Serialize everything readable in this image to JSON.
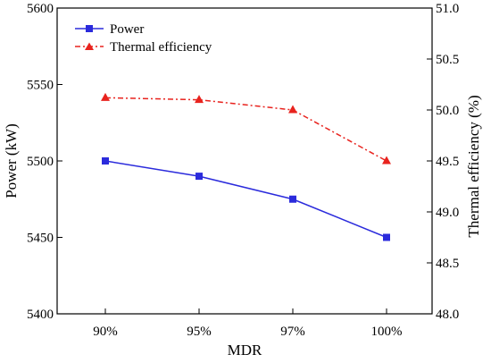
{
  "chart_data": {
    "type": "line",
    "categories": [
      "90%",
      "95%",
      "97%",
      "100%"
    ],
    "xlabel": "MDR",
    "y_left": {
      "label": "Power (kW)",
      "ylim": [
        5400,
        5600
      ],
      "ticks": [
        5400,
        5450,
        5500,
        5550,
        5600
      ]
    },
    "y_right": {
      "label": "Thermal efficiency (%)",
      "ylim": [
        48.0,
        51.0
      ],
      "ticks": [
        "48.0",
        "48.5",
        "49.0",
        "49.5",
        "50.0",
        "50.5",
        "51.0"
      ]
    },
    "series": [
      {
        "name": "Power",
        "axis": "left",
        "color": "#2b2bdc",
        "marker": "square",
        "line_style": "solid",
        "values": [
          5500,
          5490,
          5475,
          5450
        ]
      },
      {
        "name": "Thermal efficiency",
        "axis": "right",
        "color": "#e8231e",
        "marker": "triangle",
        "line_style": "dash-dot",
        "values": [
          50.12,
          50.1,
          50.0,
          49.5
        ]
      }
    ],
    "legend_position": "top-left",
    "grid": false
  }
}
